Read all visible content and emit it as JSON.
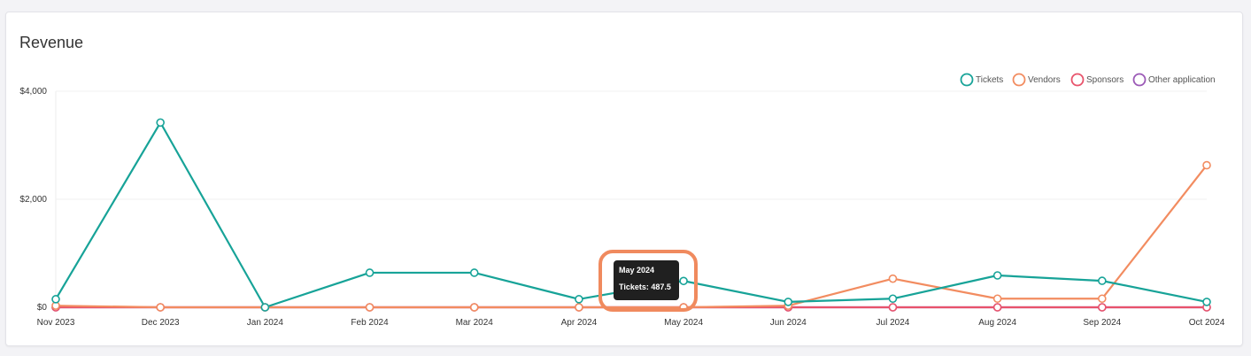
{
  "card": {
    "title": "Revenue"
  },
  "chart_data": {
    "type": "line",
    "title": "Revenue",
    "xlabel": "",
    "ylabel": "",
    "categories": [
      "Nov 2023",
      "Dec 2023",
      "Jan 2024",
      "Feb 2024",
      "Mar 2024",
      "Apr 2024",
      "May 2024",
      "Jun 2024",
      "Jul 2024",
      "Aug 2024",
      "Sep 2024",
      "Oct 2024"
    ],
    "ylim": [
      0,
      4000
    ],
    "yticks": [
      {
        "value": 0,
        "label": "$0"
      },
      {
        "value": 2000,
        "label": "$2,000"
      },
      {
        "value": 4000,
        "label": "$4,000"
      }
    ],
    "grid": true,
    "legend_position": "top-right",
    "series": [
      {
        "name": "Tickets",
        "color": "#17a398",
        "values": [
          150,
          3420,
          0,
          640,
          640,
          150,
          487.5,
          100,
          160,
          590,
          490,
          100
        ]
      },
      {
        "name": "Vendors",
        "color": "#f28c60",
        "values": [
          30,
          0,
          0,
          0,
          0,
          0,
          0,
          30,
          530,
          160,
          160,
          2630
        ]
      },
      {
        "name": "Sponsors",
        "color": "#e8536b",
        "values": [
          0,
          0,
          0,
          0,
          0,
          0,
          0,
          0,
          0,
          0,
          0,
          0
        ]
      },
      {
        "name": "Other application",
        "color": "#9b59b6",
        "values": [
          0,
          0,
          0,
          0,
          0,
          0,
          0,
          0,
          0,
          0,
          0,
          0
        ]
      }
    ],
    "tooltip": {
      "title": "May 2024",
      "body": "Tickets: 487.5",
      "category": "May 2024",
      "series": "Tickets"
    },
    "highlight_color": "#f08a5e"
  }
}
